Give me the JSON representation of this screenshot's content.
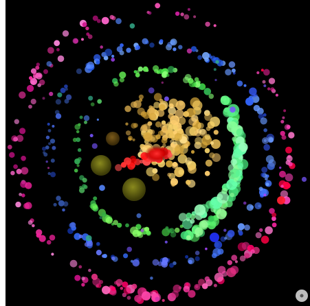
{
  "visualization": {
    "background_color": "#000000",
    "page_color": "#ffffff",
    "clusters": [
      {
        "name": "yellow-core",
        "color": "#f5d36a"
      },
      {
        "name": "red-streak",
        "color": "#ff1a1a"
      },
      {
        "name": "olive-blobs",
        "color": "#6b6a16"
      },
      {
        "name": "green-ring",
        "color": "#66ee55"
      },
      {
        "name": "blue-ring",
        "color": "#4477ff"
      },
      {
        "name": "magenta-ring",
        "color": "#ff44bb"
      },
      {
        "name": "cyan-arc",
        "color": "#66ffaa"
      }
    ]
  },
  "corner_control": {
    "icon": "circle-toggle-icon",
    "color": "#bbbbbb"
  }
}
